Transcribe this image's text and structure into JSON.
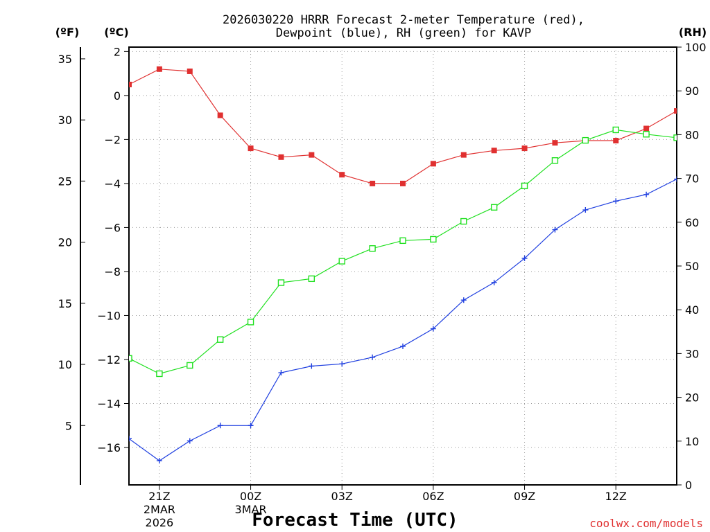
{
  "chart_data": {
    "type": "line",
    "title_line1": "2026030220 HRRR Forecast 2-meter Temperature (red),",
    "title_line2": "Dewpoint (blue), RH (green) for KAVP",
    "xlabel": "Forecast Time (UTC)",
    "credit": "coolwx.com/models",
    "units": {
      "fahrenheit": "(ºF)",
      "celsius": "(ºC)",
      "rh": "(RH)"
    },
    "x_hours": [
      20,
      21,
      22,
      23,
      24,
      25,
      26,
      27,
      28,
      29,
      30,
      31,
      32,
      33,
      34,
      35,
      36,
      37,
      38
    ],
    "x_ticks": [
      {
        "hour": 21,
        "label": "21Z",
        "date1": "2MAR",
        "date2": "2026"
      },
      {
        "hour": 24,
        "label": "00Z",
        "date1": "3MAR",
        "date2": ""
      },
      {
        "hour": 27,
        "label": "03Z",
        "date1": "",
        "date2": ""
      },
      {
        "hour": 30,
        "label": "06Z",
        "date1": "",
        "date2": ""
      },
      {
        "hour": 33,
        "label": "09Z",
        "date1": "",
        "date2": ""
      },
      {
        "hour": 36,
        "label": "12Z",
        "date1": "",
        "date2": ""
      }
    ],
    "celsius_axis": {
      "min": -17.7,
      "max": 2.2,
      "ticks": [
        2,
        0,
        -2,
        -4,
        -6,
        -8,
        -10,
        -12,
        -14,
        -16
      ]
    },
    "fahrenheit_axis": {
      "ticks": [
        35,
        30,
        25,
        20,
        15,
        10,
        5
      ]
    },
    "rh_axis": {
      "min": 0,
      "max": 100,
      "ticks": [
        100,
        90,
        80,
        70,
        60,
        50,
        40,
        30,
        20,
        10,
        0
      ]
    },
    "series": [
      {
        "name": "Temperature",
        "color": "#e03030",
        "marker": "filled-square",
        "axis": "celsius",
        "values": [
          0.5,
          1.2,
          1.1,
          -0.9,
          -2.4,
          -2.8,
          -2.7,
          -3.6,
          -4.0,
          -4.0,
          -3.1,
          -2.7,
          -2.5,
          -2.4,
          -2.15,
          -2.05,
          -2.05,
          -1.5,
          -0.7
        ]
      },
      {
        "name": "Dewpoint",
        "color": "#2040e0",
        "marker": "plus",
        "axis": "celsius",
        "values": [
          -15.6,
          -16.6,
          -15.7,
          -15.0,
          -15.0,
          -12.6,
          -12.3,
          -12.2,
          -11.9,
          -11.4,
          -10.6,
          -9.3,
          -8.5,
          -7.4,
          -6.1,
          -5.2,
          -4.8,
          -4.5,
          -3.8
        ]
      },
      {
        "name": "RH",
        "color": "#20e020",
        "marker": "open-square",
        "axis": "rh",
        "values": [
          28.9,
          25.4,
          27.3,
          33.2,
          37.2,
          46.2,
          47.1,
          51.1,
          54.0,
          55.8,
          56.1,
          60.2,
          63.4,
          68.3,
          74.1,
          78.7,
          81.1,
          80.1,
          79.3
        ]
      }
    ]
  }
}
